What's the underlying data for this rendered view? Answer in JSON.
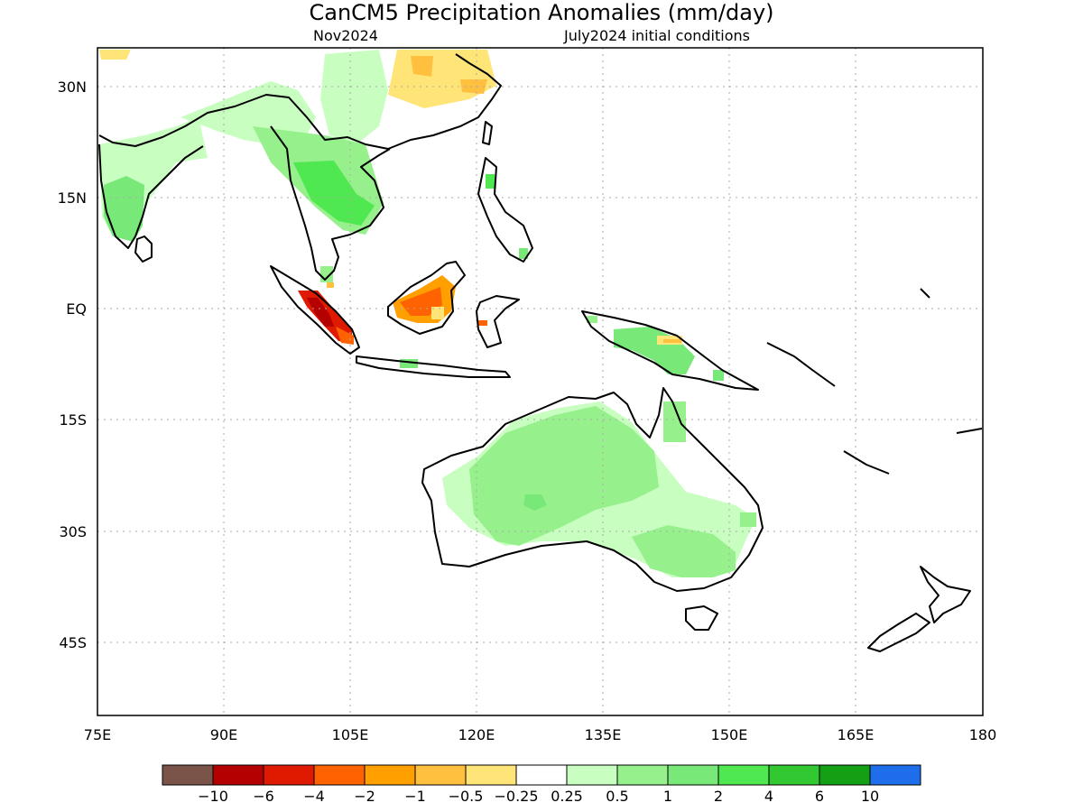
{
  "title": "CanCM5 Precipitation Anomalies (mm/day)",
  "subtitle_left": "Nov2024",
  "subtitle_right": "July2024 initial conditions",
  "map": {
    "lon_range": [
      75,
      180
    ],
    "lat_range": [
      -55,
      35
    ],
    "grid": true,
    "lon_ticks": [
      "75E",
      "90E",
      "105E",
      "120E",
      "135E",
      "150E",
      "165E",
      "180"
    ],
    "lat_ticks": [
      "30N",
      "15N",
      "EQ",
      "15S",
      "30S",
      "45S"
    ]
  },
  "legend": {
    "colors": [
      "#7a5448",
      "#b40000",
      "#e01a00",
      "#ff6200",
      "#ffa000",
      "#ffc040",
      "#ffe478",
      "#ffffff",
      "#c8ffc0",
      "#96f08c",
      "#78e878",
      "#50e850",
      "#32c832",
      "#14a014",
      "#1e6eeb"
    ],
    "labels": [
      "−10",
      "−6",
      "−4",
      "−2",
      "−1",
      "−0.5",
      "−0.25",
      "0.25",
      "0.5",
      "1",
      "2",
      "4",
      "6",
      "10"
    ]
  }
}
